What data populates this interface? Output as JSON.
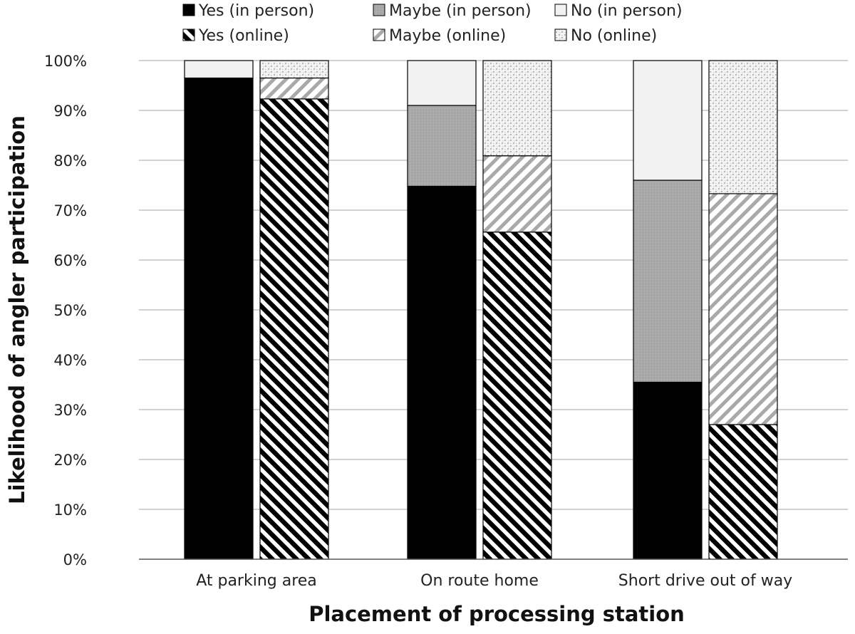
{
  "chart_data": {
    "type": "bar",
    "stacked": true,
    "title": "",
    "xlabel": "Placement of processing station",
    "ylabel": "Likelihood of angler participation",
    "ylim": [
      0,
      100
    ],
    "yticks": [
      "0%",
      "10%",
      "20%",
      "30%",
      "40%",
      "50%",
      "60%",
      "70%",
      "80%",
      "90%",
      "100%"
    ],
    "grid": true,
    "legend_position": "top",
    "categories": [
      "At parking area",
      "On route home",
      "Short drive out of way"
    ],
    "groups": [
      {
        "mode": "in person",
        "series": [
          {
            "name": "Yes (in person)",
            "fill": "solid-black",
            "values": [
              96.5,
              74.8,
              35.5
            ]
          },
          {
            "name": "Maybe (in person)",
            "fill": "gray",
            "values": [
              0,
              16.2,
              40.5
            ]
          },
          {
            "name": "No (in person)",
            "fill": "light-gray",
            "values": [
              3.5,
              9.0,
              24.0
            ]
          }
        ]
      },
      {
        "mode": "online",
        "series": [
          {
            "name": "Yes (online)",
            "fill": "black-diagonal-stripes",
            "values": [
              92.3,
              65.6,
              27.0
            ]
          },
          {
            "name": "Maybe (online)",
            "fill": "gray-diagonal-stripes",
            "values": [
              4.2,
              15.3,
              46.3
            ]
          },
          {
            "name": "No (online)",
            "fill": "dotted",
            "values": [
              3.5,
              19.1,
              26.7
            ]
          }
        ]
      }
    ],
    "colors": {
      "black": "#000000",
      "gray": "#a9a9a9",
      "light_gray": "#f2f2f2",
      "gridline": "#a6a6a6",
      "axis": "#595959"
    }
  }
}
